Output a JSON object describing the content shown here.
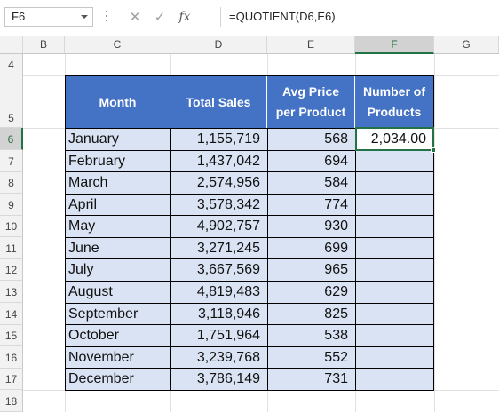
{
  "formula_bar": {
    "name_box": "F6",
    "cancel_icon": "✕",
    "enter_icon": "✓",
    "fx_label": "fx",
    "formula": "=QUOTIENT(D6,E6)"
  },
  "columns": [
    "B",
    "C",
    "D",
    "E",
    "F",
    "G"
  ],
  "selected_column": "F",
  "rows": [
    "4",
    "5",
    "6",
    "7",
    "8",
    "9",
    "10",
    "11",
    "12",
    "13",
    "14",
    "15",
    "16",
    "17",
    "18"
  ],
  "selected_row": "6",
  "table": {
    "headers": [
      "Month",
      "Total Sales",
      "Avg Price per Product",
      "Number of Products"
    ],
    "rows": [
      {
        "month": "January",
        "total_sales": "1,155,719",
        "avg_price": "568",
        "products": "2,034.00"
      },
      {
        "month": "February",
        "total_sales": "1,437,042",
        "avg_price": "694",
        "products": ""
      },
      {
        "month": "March",
        "total_sales": "2,574,956",
        "avg_price": "584",
        "products": ""
      },
      {
        "month": "April",
        "total_sales": "3,578,342",
        "avg_price": "774",
        "products": ""
      },
      {
        "month": "May",
        "total_sales": "4,902,757",
        "avg_price": "930",
        "products": ""
      },
      {
        "month": "June",
        "total_sales": "3,271,245",
        "avg_price": "699",
        "products": ""
      },
      {
        "month": "July",
        "total_sales": "3,667,569",
        "avg_price": "965",
        "products": ""
      },
      {
        "month": "August",
        "total_sales": "4,819,483",
        "avg_price": "629",
        "products": ""
      },
      {
        "month": "September",
        "total_sales": "3,118,946",
        "avg_price": "825",
        "products": ""
      },
      {
        "month": "October",
        "total_sales": "1,751,964",
        "avg_price": "538",
        "products": ""
      },
      {
        "month": "November",
        "total_sales": "3,239,768",
        "avg_price": "552",
        "products": ""
      },
      {
        "month": "December",
        "total_sales": "3,786,149",
        "avg_price": "731",
        "products": ""
      }
    ]
  },
  "colors": {
    "header_fill": "#4472c4",
    "body_fill": "#dae3f3",
    "selection": "#217346"
  }
}
